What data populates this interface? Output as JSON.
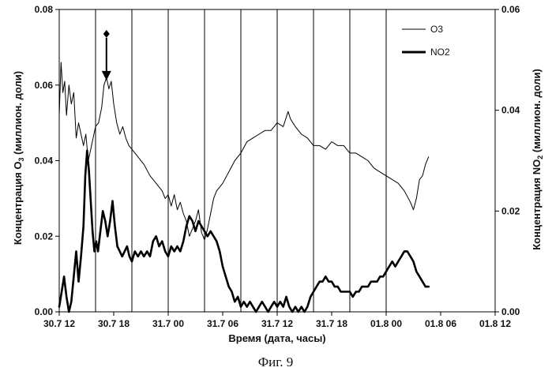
{
  "chart_data": {
    "type": "line",
    "x_tick_labels": [
      "30.7 12",
      "30.7 18",
      "31.7 00",
      "31.7 06",
      "31.7 12",
      "31.7 18",
      "01.8 00",
      "01.8 06",
      "01.8 12"
    ],
    "x_range_hours": [
      0,
      72
    ],
    "xlabel": "Время (дата, часы)",
    "y_left": {
      "label_main": "Концентрация O",
      "label_sub": "3",
      "label_tail": " (миллион. доли)",
      "ticks": [
        "0.00",
        "0.02",
        "0.04",
        "0.06",
        "0.08"
      ],
      "ylim": [
        0,
        0.08
      ]
    },
    "y_right": {
      "label_main": "Концентрация NO",
      "label_sub": "2",
      "label_tail": " (миллион. доли)",
      "ticks": [
        "0.00",
        "0.02",
        "0.04",
        "0.06"
      ],
      "ylim": [
        0,
        0.06
      ]
    },
    "vertical_gridlines_hours": [
      6,
      12,
      18,
      24,
      30,
      36,
      42,
      48,
      54
    ],
    "legend": {
      "position": "top-right",
      "entries": [
        {
          "label": "O3",
          "style": "thin"
        },
        {
          "label": "NO2",
          "style": "thick"
        }
      ]
    },
    "series": [
      {
        "name": "O3",
        "axis": "left",
        "points": [
          [
            0.0,
            0.052
          ],
          [
            0.3,
            0.066
          ],
          [
            0.6,
            0.058
          ],
          [
            0.9,
            0.061
          ],
          [
            1.2,
            0.052
          ],
          [
            1.6,
            0.06
          ],
          [
            2.0,
            0.055
          ],
          [
            2.4,
            0.058
          ],
          [
            2.8,
            0.046
          ],
          [
            3.2,
            0.05
          ],
          [
            3.6,
            0.047
          ],
          [
            4.0,
            0.044
          ],
          [
            4.4,
            0.047
          ],
          [
            4.8,
            0.04
          ],
          [
            5.2,
            0.043
          ],
          [
            5.6,
            0.046
          ],
          [
            6.0,
            0.049
          ],
          [
            6.5,
            0.05
          ],
          [
            7.0,
            0.054
          ],
          [
            7.4,
            0.06
          ],
          [
            7.8,
            0.062
          ],
          [
            8.2,
            0.059
          ],
          [
            8.6,
            0.061
          ],
          [
            9.0,
            0.055
          ],
          [
            9.5,
            0.05
          ],
          [
            10.0,
            0.047
          ],
          [
            10.5,
            0.049
          ],
          [
            11.0,
            0.046
          ],
          [
            11.5,
            0.044
          ],
          [
            12.0,
            0.043
          ],
          [
            13.0,
            0.041
          ],
          [
            14.0,
            0.039
          ],
          [
            15.0,
            0.036
          ],
          [
            16.0,
            0.034
          ],
          [
            17.0,
            0.032
          ],
          [
            17.5,
            0.03
          ],
          [
            18.0,
            0.031
          ],
          [
            18.5,
            0.028
          ],
          [
            19.0,
            0.031
          ],
          [
            19.5,
            0.027
          ],
          [
            20.0,
            0.029
          ],
          [
            20.5,
            0.026
          ],
          [
            21.0,
            0.024
          ],
          [
            21.5,
            0.02
          ],
          [
            22.0,
            0.022
          ],
          [
            22.5,
            0.024
          ],
          [
            23.0,
            0.027
          ],
          [
            23.5,
            0.021
          ],
          [
            24.0,
            0.019
          ],
          [
            24.5,
            0.022
          ],
          [
            25.0,
            0.026
          ],
          [
            25.5,
            0.03
          ],
          [
            26.0,
            0.032
          ],
          [
            27.0,
            0.034
          ],
          [
            28.0,
            0.037
          ],
          [
            29.0,
            0.04
          ],
          [
            30.0,
            0.042
          ],
          [
            31.0,
            0.045
          ],
          [
            32.0,
            0.046
          ],
          [
            33.0,
            0.047
          ],
          [
            34.0,
            0.048
          ],
          [
            35.0,
            0.048
          ],
          [
            36.0,
            0.05
          ],
          [
            37.0,
            0.049
          ],
          [
            37.8,
            0.053
          ],
          [
            38.2,
            0.051
          ],
          [
            39.0,
            0.049
          ],
          [
            40.0,
            0.047
          ],
          [
            41.0,
            0.046
          ],
          [
            42.0,
            0.044
          ],
          [
            43.0,
            0.044
          ],
          [
            44.0,
            0.043
          ],
          [
            45.0,
            0.045
          ],
          [
            46.0,
            0.044
          ],
          [
            47.0,
            0.044
          ],
          [
            48.0,
            0.042
          ],
          [
            49.0,
            0.042
          ],
          [
            50.0,
            0.041
          ],
          [
            51.0,
            0.04
          ],
          [
            52.0,
            0.038
          ],
          [
            53.0,
            0.037
          ],
          [
            54.0,
            0.036
          ],
          [
            55.0,
            0.035
          ],
          [
            56.0,
            0.034
          ],
          [
            57.0,
            0.032
          ],
          [
            58.0,
            0.029
          ],
          [
            58.5,
            0.027
          ],
          [
            59.0,
            0.03
          ],
          [
            59.5,
            0.035
          ],
          [
            60.0,
            0.036
          ],
          [
            60.5,
            0.039
          ],
          [
            61.0,
            0.041
          ]
        ]
      },
      {
        "name": "NO2",
        "axis": "right",
        "points": [
          [
            0.0,
            0.001
          ],
          [
            0.4,
            0.004
          ],
          [
            0.8,
            0.007
          ],
          [
            1.2,
            0.003
          ],
          [
            1.6,
            0.0
          ],
          [
            2.0,
            0.002
          ],
          [
            2.4,
            0.007
          ],
          [
            2.8,
            0.012
          ],
          [
            3.2,
            0.006
          ],
          [
            3.6,
            0.011
          ],
          [
            4.0,
            0.017
          ],
          [
            4.3,
            0.027
          ],
          [
            4.6,
            0.032
          ],
          [
            4.9,
            0.028
          ],
          [
            5.2,
            0.022
          ],
          [
            5.5,
            0.016
          ],
          [
            5.8,
            0.012
          ],
          [
            6.1,
            0.014
          ],
          [
            6.4,
            0.012
          ],
          [
            6.8,
            0.016
          ],
          [
            7.2,
            0.02
          ],
          [
            7.6,
            0.018
          ],
          [
            8.0,
            0.015
          ],
          [
            8.4,
            0.018
          ],
          [
            8.8,
            0.022
          ],
          [
            9.2,
            0.017
          ],
          [
            9.6,
            0.013
          ],
          [
            10.0,
            0.012
          ],
          [
            10.4,
            0.011
          ],
          [
            10.8,
            0.012
          ],
          [
            11.2,
            0.013
          ],
          [
            11.6,
            0.011
          ],
          [
            12.0,
            0.01
          ],
          [
            12.5,
            0.012
          ],
          [
            13.0,
            0.011
          ],
          [
            13.5,
            0.012
          ],
          [
            14.0,
            0.011
          ],
          [
            14.5,
            0.012
          ],
          [
            15.0,
            0.011
          ],
          [
            15.5,
            0.014
          ],
          [
            16.0,
            0.015
          ],
          [
            16.5,
            0.013
          ],
          [
            17.0,
            0.014
          ],
          [
            17.5,
            0.012
          ],
          [
            18.0,
            0.011
          ],
          [
            18.5,
            0.013
          ],
          [
            19.0,
            0.012
          ],
          [
            19.5,
            0.013
          ],
          [
            20.0,
            0.012
          ],
          [
            20.5,
            0.014
          ],
          [
            21.0,
            0.017
          ],
          [
            21.5,
            0.019
          ],
          [
            22.0,
            0.018
          ],
          [
            22.5,
            0.016
          ],
          [
            23.0,
            0.018
          ],
          [
            23.5,
            0.017
          ],
          [
            24.0,
            0.016
          ],
          [
            24.5,
            0.015
          ],
          [
            25.0,
            0.016
          ],
          [
            25.5,
            0.015
          ],
          [
            26.0,
            0.014
          ],
          [
            26.5,
            0.012
          ],
          [
            27.0,
            0.009
          ],
          [
            27.5,
            0.007
          ],
          [
            28.0,
            0.005
          ],
          [
            28.5,
            0.004
          ],
          [
            29.0,
            0.002
          ],
          [
            29.5,
            0.003
          ],
          [
            30.0,
            0.001
          ],
          [
            30.5,
            0.002
          ],
          [
            31.0,
            0.001
          ],
          [
            31.5,
            0.002
          ],
          [
            32.0,
            0.001
          ],
          [
            32.5,
            0.0
          ],
          [
            33.0,
            0.001
          ],
          [
            33.5,
            0.002
          ],
          [
            34.0,
            0.001
          ],
          [
            34.5,
            0.0
          ],
          [
            35.0,
            0.001
          ],
          [
            35.5,
            0.002
          ],
          [
            36.0,
            0.001
          ],
          [
            36.5,
            0.002
          ],
          [
            37.0,
            0.001
          ],
          [
            37.5,
            0.003
          ],
          [
            38.0,
            0.001
          ],
          [
            38.5,
            0.0
          ],
          [
            39.0,
            0.001
          ],
          [
            39.5,
            0.0
          ],
          [
            40.0,
            0.001
          ],
          [
            40.5,
            0.0
          ],
          [
            41.0,
            0.001
          ],
          [
            41.5,
            0.003
          ],
          [
            42.0,
            0.004
          ],
          [
            42.5,
            0.005
          ],
          [
            43.0,
            0.006
          ],
          [
            43.5,
            0.006
          ],
          [
            44.0,
            0.007
          ],
          [
            44.5,
            0.006
          ],
          [
            45.0,
            0.006
          ],
          [
            45.5,
            0.005
          ],
          [
            46.0,
            0.005
          ],
          [
            46.5,
            0.004
          ],
          [
            47.0,
            0.004
          ],
          [
            47.5,
            0.004
          ],
          [
            48.0,
            0.004
          ],
          [
            48.5,
            0.003
          ],
          [
            49.0,
            0.004
          ],
          [
            49.5,
            0.004
          ],
          [
            50.0,
            0.005
          ],
          [
            50.5,
            0.005
          ],
          [
            51.0,
            0.005
          ],
          [
            51.5,
            0.006
          ],
          [
            52.0,
            0.006
          ],
          [
            52.5,
            0.006
          ],
          [
            53.0,
            0.007
          ],
          [
            53.5,
            0.007
          ],
          [
            54.0,
            0.008
          ],
          [
            54.5,
            0.009
          ],
          [
            55.0,
            0.01
          ],
          [
            55.5,
            0.009
          ],
          [
            56.0,
            0.01
          ],
          [
            56.5,
            0.011
          ],
          [
            57.0,
            0.012
          ],
          [
            57.5,
            0.012
          ],
          [
            58.0,
            0.011
          ],
          [
            58.5,
            0.01
          ],
          [
            59.0,
            0.008
          ],
          [
            59.5,
            0.007
          ],
          [
            60.0,
            0.006
          ],
          [
            60.5,
            0.005
          ],
          [
            61.0,
            0.005
          ]
        ]
      }
    ],
    "annotation": {
      "type": "arrow",
      "x_hour": 7.8,
      "y_left": 0.07
    }
  },
  "caption": "Фиг. 9"
}
